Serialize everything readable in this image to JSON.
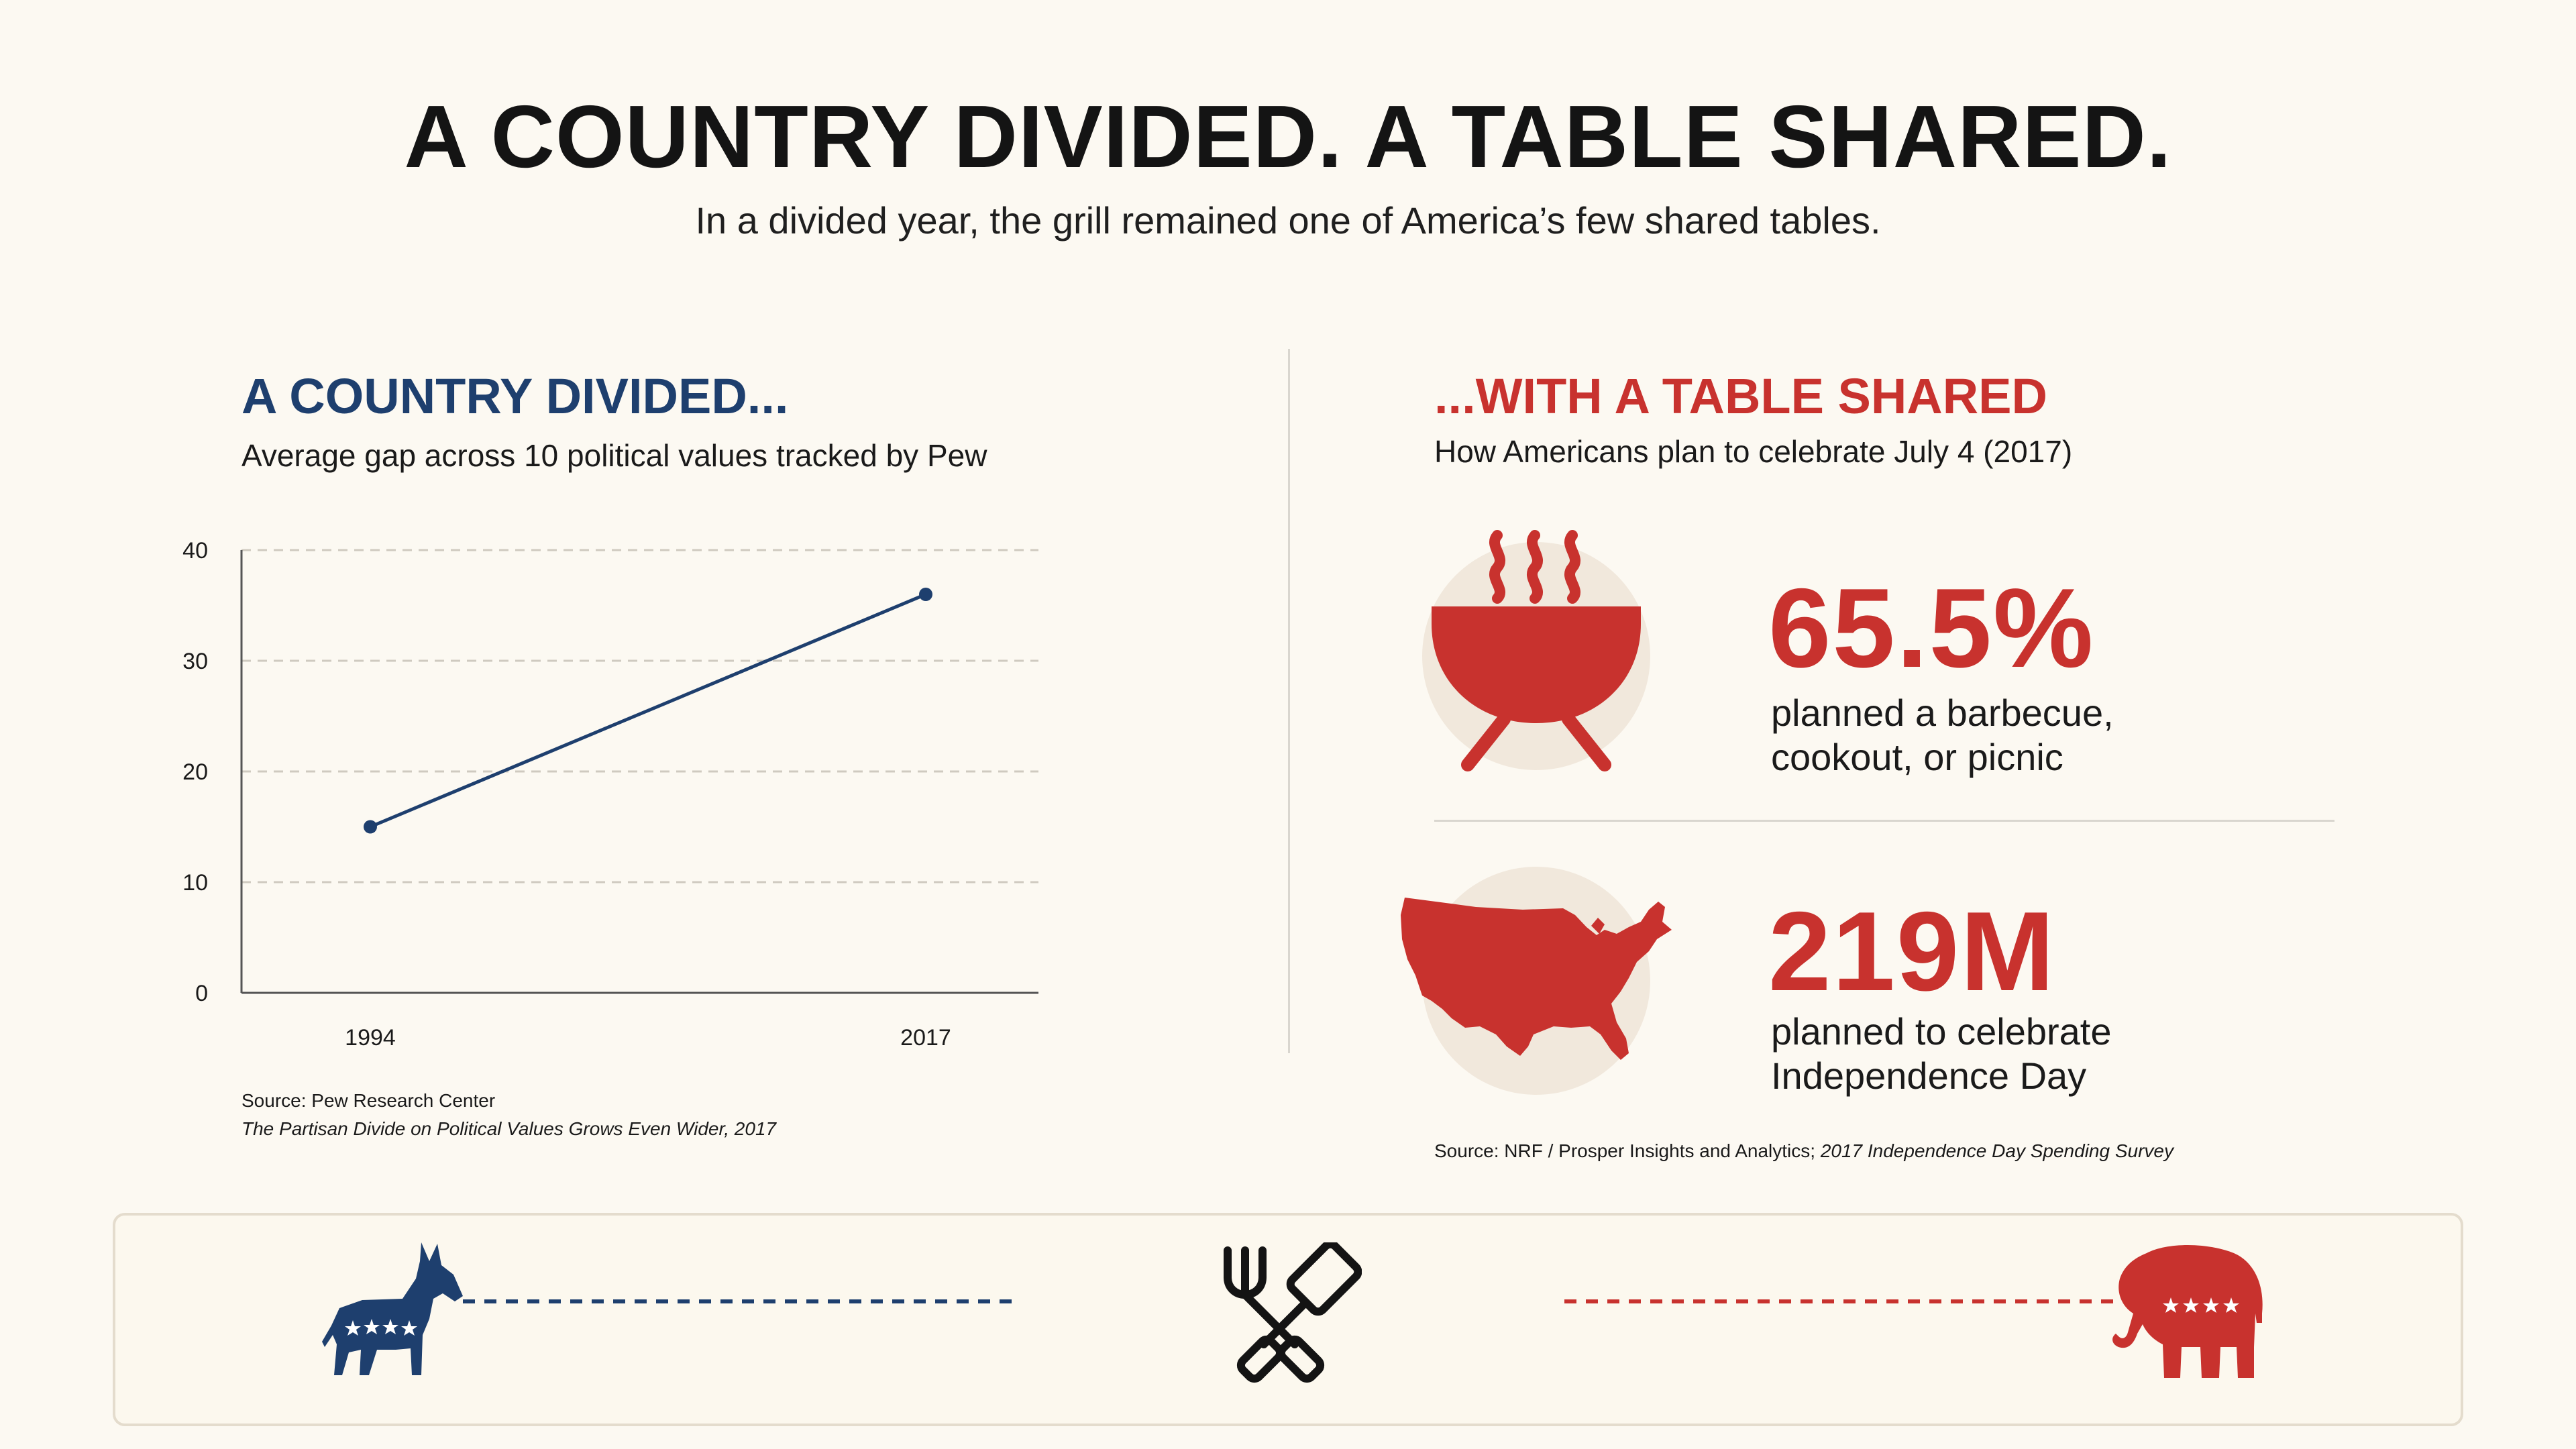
{
  "header": {
    "title": "A COUNTRY DIVIDED. A TABLE SHARED.",
    "subtitle": "In a divided year, the grill remained one of America’s few shared tables."
  },
  "left_panel": {
    "title": "A COUNTRY DIVIDED...",
    "subtitle": "Average gap across 10 political values tracked by Pew",
    "source_line1": "Source: Pew Research Center",
    "source_line2": "The Partisan Divide on Political Values Grows Even Wider, 2017"
  },
  "right_panel": {
    "title": "...WITH A TABLE SHARED",
    "subtitle": "How Americans plan to celebrate July 4 (2017)",
    "stats": [
      {
        "value": "65.5%",
        "label_line1": "planned a barbecue,",
        "label_line2": "cookout, or picnic",
        "icon": "grill-icon"
      },
      {
        "value": "219M",
        "label_line1": "planned to celebrate",
        "label_line2": "Independence Day",
        "icon": "usa-map-icon"
      }
    ],
    "source_prefix": "Source: NRF / Prosper Insights and Analytics; ",
    "source_italic": "2017 Independence Day Spending Survey"
  },
  "bottom_band": {
    "icons": [
      "donkey-icon",
      "grill-tools-icon",
      "elephant-icon"
    ],
    "colors": {
      "democrat": "#1e3f6e",
      "republican": "#c8322e"
    }
  },
  "colors": {
    "background": "#fcf9f2",
    "navy": "#1e3f6e",
    "red": "#c8322e",
    "circle": "#f1e8dc"
  },
  "chart_data": {
    "type": "line",
    "title": "",
    "xlabel": "",
    "ylabel": "",
    "x": [
      "1994",
      "2017"
    ],
    "series": [
      {
        "values": [
          15,
          36
        ]
      }
    ],
    "ylim": [
      0,
      40
    ],
    "yticks": [
      0,
      10,
      20,
      30,
      40
    ],
    "grid": true,
    "color": "#1e3f6e"
  }
}
